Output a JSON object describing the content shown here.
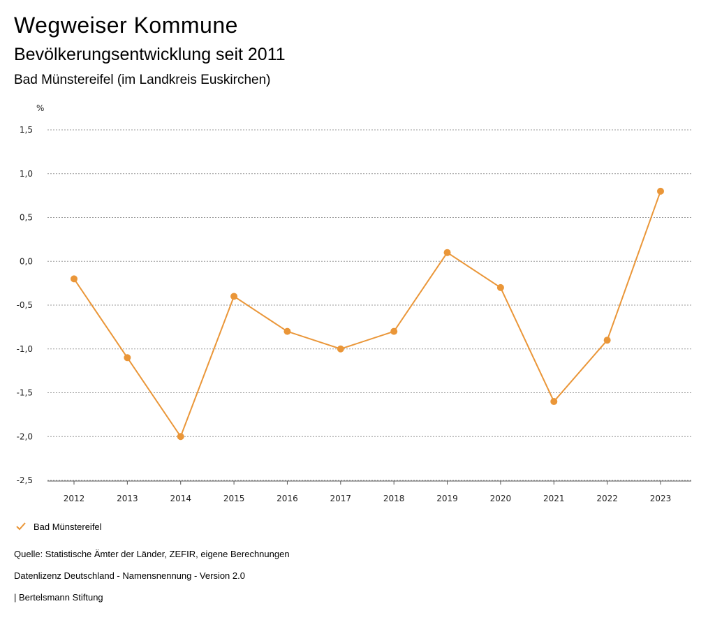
{
  "header": {
    "title": "Wegweiser Kommune",
    "subtitle": "Bevölkerungsentwicklung seit 2011",
    "place": "Bad Münstereifel (im Landkreis Euskirchen)"
  },
  "chart_data": {
    "type": "line",
    "title": "Bevölkerungsentwicklung seit 2011",
    "ylabel": "%",
    "xlabel": "",
    "categories": [
      "2012",
      "2013",
      "2014",
      "2015",
      "2016",
      "2017",
      "2018",
      "2019",
      "2020",
      "2021",
      "2022",
      "2023"
    ],
    "yticks": [
      "1,5",
      "1,0",
      "0,5",
      "0,0",
      "-0,5",
      "-1,0",
      "-1,5",
      "-2,0",
      "-2,5"
    ],
    "ytick_values": [
      1.5,
      1.0,
      0.5,
      0.0,
      -0.5,
      -1.0,
      -1.5,
      -2.0,
      -2.5
    ],
    "ylim": [
      -2.5,
      1.5
    ],
    "series": [
      {
        "name": "Bad Münstereifel",
        "color": "#ea9638",
        "values": [
          -0.2,
          -1.1,
          -2.0,
          -0.4,
          -0.8,
          -1.0,
          -0.8,
          0.1,
          -0.3,
          -1.6,
          -0.9,
          0.8
        ]
      }
    ],
    "grid": true,
    "legend_position": "bottom-left"
  },
  "legend": {
    "label": "Bad Münstereifel"
  },
  "footer": {
    "source": "Quelle: Statistische Ämter der Länder, ZEFIR, eigene Berechnungen",
    "license": "Datenlizenz Deutschland - Namensnennung - Version 2.0",
    "publisher": "| Bertelsmann Stiftung"
  }
}
